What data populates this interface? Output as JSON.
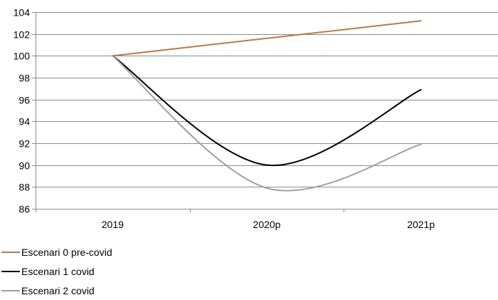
{
  "chart_data": {
    "type": "line",
    "title": "",
    "xlabel": "",
    "ylabel": "",
    "categories": [
      "2019",
      "2020p",
      "2021p"
    ],
    "ylim": [
      86,
      104
    ],
    "yticks": [
      "86",
      "88",
      "90",
      "92",
      "94",
      "96",
      "98",
      "100",
      "102",
      "104"
    ],
    "grid": true,
    "legend_position": "bottom-left",
    "series": [
      {
        "name": "Escenari 0 pre-covid",
        "color": "#b87a4b",
        "values": [
          100,
          101.6,
          103.2
        ]
      },
      {
        "name": "Escenari 1 covid",
        "color": "#000000",
        "values": [
          100,
          90.0,
          96.9
        ]
      },
      {
        "name": "Escenari 2 covid",
        "color": "#a0a0a0",
        "values": [
          100,
          87.9,
          91.9
        ]
      }
    ]
  }
}
